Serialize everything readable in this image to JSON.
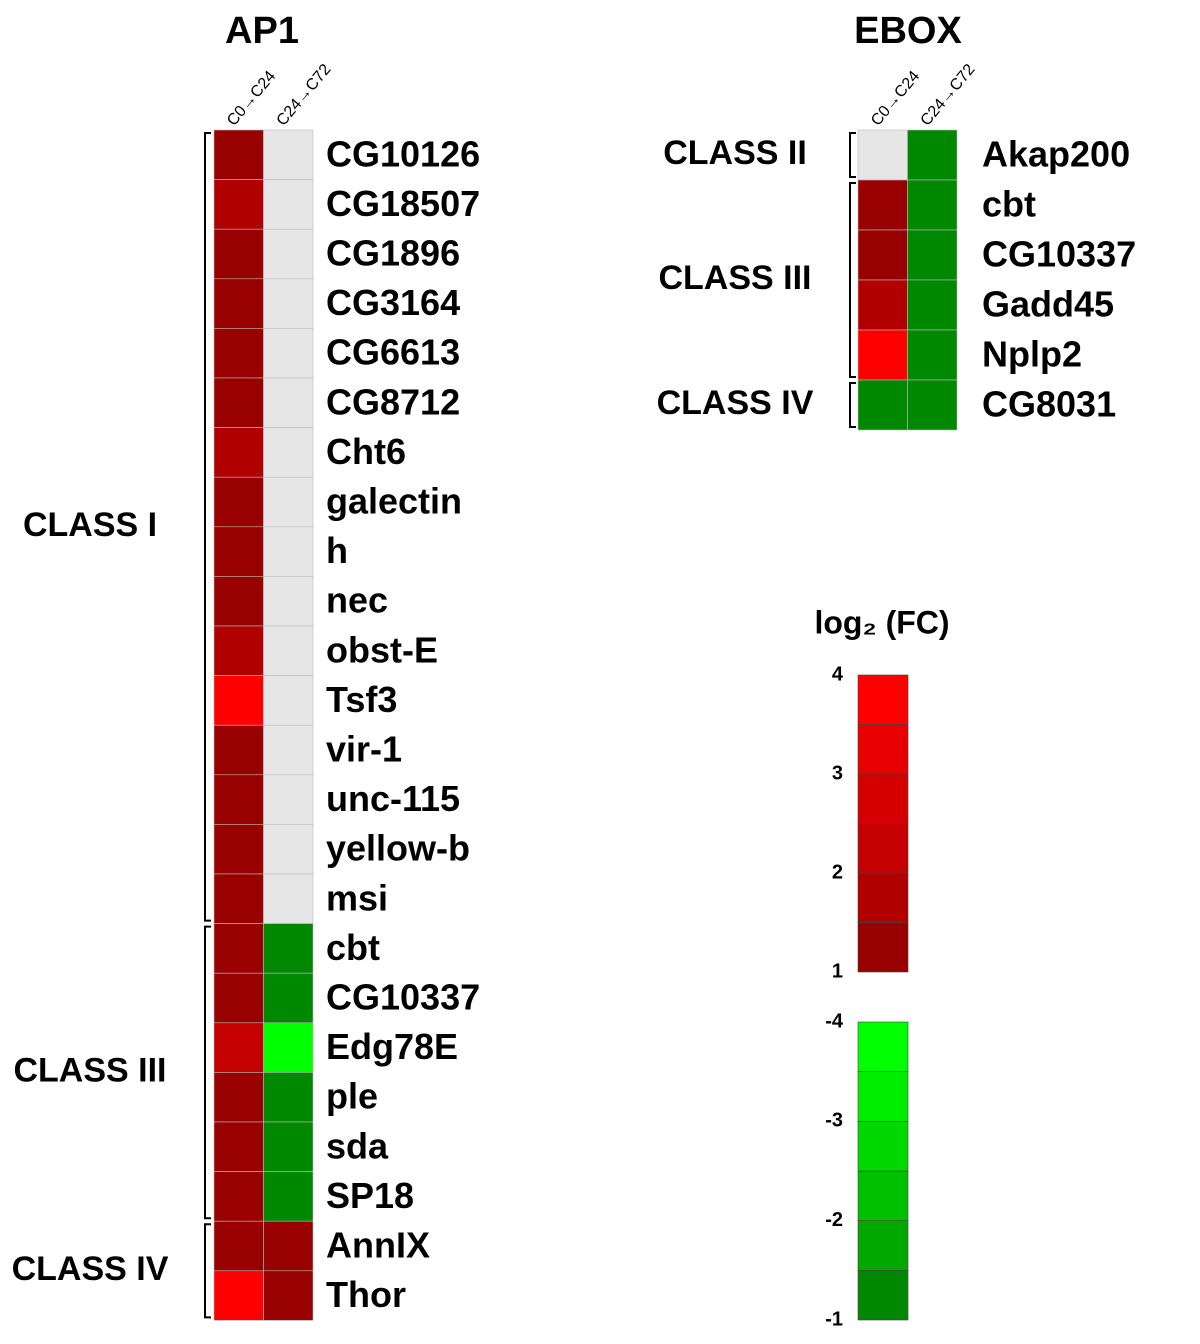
{
  "chart_data": [
    {
      "type": "heatmap",
      "title": "AP1",
      "columns": [
        "C0→C24",
        "C24→C72"
      ],
      "rows": [
        "CG10126",
        "CG18507",
        "CG1896",
        "CG3164",
        "CG6613",
        "CG8712",
        "Cht6",
        "galectin",
        "h",
        "nec",
        "obst-E",
        "Tsf3",
        "vir-1",
        "unc-115",
        "yellow-b",
        "msi",
        "cbt",
        "CG10337",
        "Edg78E",
        "ple",
        "sda",
        "SP18",
        "AnnIX",
        "Thor"
      ],
      "values": [
        [
          1.2,
          null
        ],
        [
          1.8,
          null
        ],
        [
          1.2,
          null
        ],
        [
          1.2,
          null
        ],
        [
          1.2,
          null
        ],
        [
          1.2,
          null
        ],
        [
          1.8,
          null
        ],
        [
          1.2,
          null
        ],
        [
          1.2,
          null
        ],
        [
          1.2,
          null
        ],
        [
          1.8,
          null
        ],
        [
          3.8,
          null
        ],
        [
          1.2,
          null
        ],
        [
          1.2,
          null
        ],
        [
          1.2,
          null
        ],
        [
          1.2,
          null
        ],
        [
          1.2,
          -1.3
        ],
        [
          1.2,
          -1.3
        ],
        [
          2.2,
          -3.8
        ],
        [
          1.2,
          -1.3
        ],
        [
          1.2,
          -1.3
        ],
        [
          1.2,
          -1.3
        ],
        [
          1.2,
          1.2
        ],
        [
          3.8,
          1.2
        ]
      ],
      "groups": [
        {
          "label": "CLASS I",
          "count": 16
        },
        {
          "label": "CLASS III",
          "count": 6
        },
        {
          "label": "CLASS IV",
          "count": 2
        }
      ],
      "null_color": "#e6e6e6"
    },
    {
      "type": "heatmap",
      "title": "EBOX",
      "columns": [
        "C0→C24",
        "C24→C72"
      ],
      "rows": [
        "Akap200",
        "cbt",
        "CG10337",
        "Gadd45",
        "Nplp2",
        "CG8031"
      ],
      "values": [
        [
          null,
          -1.3
        ],
        [
          1.2,
          -1.3
        ],
        [
          1.2,
          -1.3
        ],
        [
          1.8,
          -1.3
        ],
        [
          3.8,
          -1.3
        ],
        [
          -1.3,
          -1.3
        ]
      ],
      "groups": [
        {
          "label": "CLASS II",
          "count": 1
        },
        {
          "label": "CLASS III",
          "count": 4
        },
        {
          "label": "CLASS IV",
          "count": 1
        }
      ],
      "null_color": "#e6e6e6"
    },
    {
      "type": "colorbar",
      "title": "log₂ (FC)",
      "positive": {
        "lim": [
          1,
          4
        ],
        "ticks": [
          4,
          3,
          2,
          1
        ],
        "colors": [
          "#990000",
          "#b00000",
          "#c40000",
          "#d40000",
          "#e80000",
          "#ff0000"
        ]
      },
      "negative": {
        "lim": [
          -1,
          -4
        ],
        "ticks": [
          -1,
          -2,
          -3,
          -4
        ],
        "colors": [
          "#008800",
          "#00a800",
          "#00c000",
          "#00d800",
          "#00ec00",
          "#00ff00"
        ]
      }
    }
  ]
}
